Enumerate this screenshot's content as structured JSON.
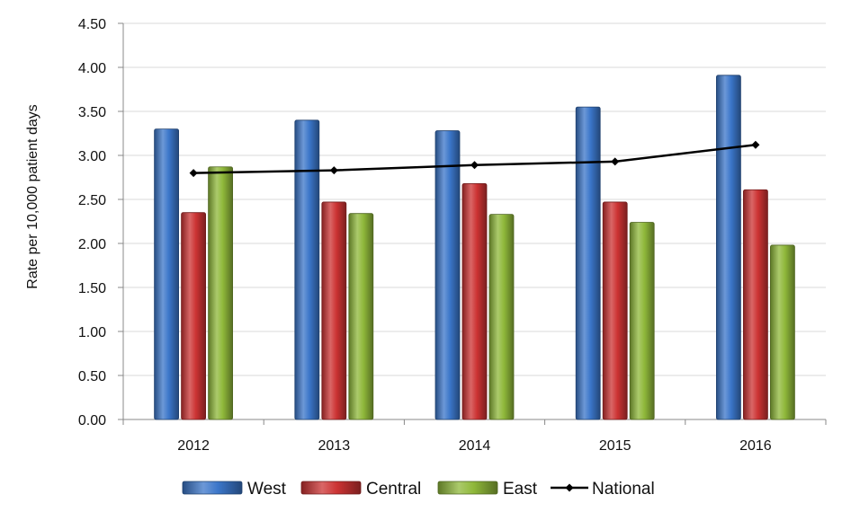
{
  "chart_data": {
    "type": "bar",
    "ylabel": "Rate per 10,000 patient days",
    "xlabel": "",
    "ylim": [
      0,
      4.5
    ],
    "ytick_step": 0.5,
    "ytick_labels": [
      "0.00",
      "0.50",
      "1.00",
      "1.50",
      "2.00",
      "2.50",
      "3.00",
      "3.50",
      "4.00",
      "4.50"
    ],
    "grid": true,
    "legend_placement": "bottom",
    "categories": [
      "2012",
      "2013",
      "2014",
      "2015",
      "2016"
    ],
    "series": [
      {
        "name": "West",
        "kind": "bar",
        "color": "#3b76c9",
        "values": [
          3.3,
          3.4,
          3.28,
          3.55,
          3.91
        ]
      },
      {
        "name": "Central",
        "kind": "bar",
        "color": "#cc3333",
        "values": [
          2.35,
          2.47,
          2.68,
          2.47,
          2.61
        ]
      },
      {
        "name": "East",
        "kind": "bar",
        "color": "#8fb83a",
        "values": [
          2.87,
          2.34,
          2.33,
          2.24,
          1.98
        ]
      },
      {
        "name": "National",
        "kind": "line",
        "color": "#000000",
        "values": [
          2.8,
          2.83,
          2.89,
          2.93,
          3.12
        ]
      }
    ]
  }
}
